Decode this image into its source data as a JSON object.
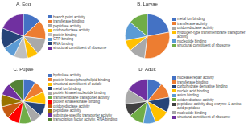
{
  "chart_data": [
    {
      "type": "pie",
      "title": "A. Egg",
      "legend": "right",
      "categories": [
        "branch point activity",
        "transferase binding",
        "peptidase activity",
        "oxidoreductase activity",
        "protein binding",
        "GTP binding",
        "RNA binding",
        "structural constituent of ribosome"
      ],
      "values": [
        13,
        14,
        12,
        8,
        10,
        9,
        15,
        19
      ],
      "colors": [
        "#4472C4",
        "#ED7D31",
        "#A9A9A9",
        "#FFC000",
        "#BFBFBF",
        "#5B9BD5",
        "#264478",
        "#7030A0"
      ]
    },
    {
      "type": "pie",
      "title": "B. Larvae",
      "legend": "right",
      "categories": [
        "metal ion binding",
        "transferase activity",
        "oxidoreductase activity",
        "hydrogen-type transmembrane transporter activity",
        "nucleotide binding",
        "structural constituent of ribosome"
      ],
      "values": [
        22,
        30,
        12,
        8,
        14,
        14
      ],
      "colors": [
        "#4472C4",
        "#ED7D31",
        "#A9A9A9",
        "#FFC000",
        "#5B9BD5",
        "#70AD47"
      ]
    },
    {
      "type": "pie",
      "title": "C. Pupae",
      "legend": "right",
      "categories": [
        "hydrolase activity",
        "protein kinase/phospholipid binding",
        "structural constituent of cuticle",
        "metal ion binding",
        "protein kinase/nucleotide binding",
        "transmembrane transporter activity",
        "protein kinase/kinase binding",
        "oxidoreductase activity",
        "peptidase activity",
        "substrate-specific transporter activity",
        "transcription factor activity, RNA binding"
      ],
      "values": [
        9,
        9,
        9,
        9,
        8,
        9,
        9,
        9,
        9,
        9,
        11
      ],
      "colors": [
        "#4472C4",
        "#ED7D31",
        "#FFC000",
        "#264478",
        "#A9A9A9",
        "#70AD47",
        "#FF0000",
        "#C55A11",
        "#997300",
        "#7030A0",
        "#548235"
      ]
    },
    {
      "type": "pie",
      "title": "D. Adult",
      "legend": "right",
      "categories": [
        "nuclease repair activity",
        "transferase binding",
        "carbohydrate derivative binding",
        "nucleic acid binding",
        "anion binding",
        "oxidoreductase activity",
        "peptidase activity drug enzyme & amino acid peptidase",
        "nucleotide binding",
        "structural constituent of ribosome"
      ],
      "values": [
        11,
        11,
        11,
        11,
        9,
        11,
        9,
        11,
        16
      ],
      "colors": [
        "#4472C4",
        "#ED7D31",
        "#264478",
        "#FFC000",
        "#5B9BD5",
        "#70AD47",
        "#404040",
        "#A9A9A9",
        "#7030A0"
      ]
    }
  ]
}
